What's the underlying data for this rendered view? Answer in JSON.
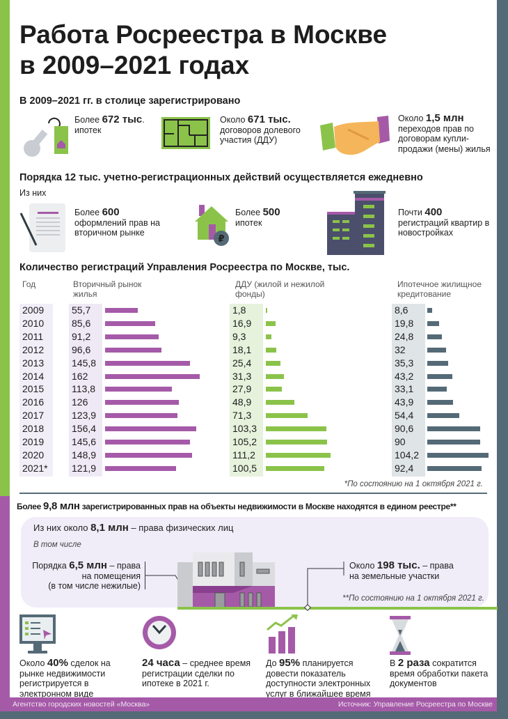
{
  "title_line1": "Работа Росреестра в Москве",
  "title_line2": "в 2009–2021 годах",
  "section1": {
    "heading": "В 2009–2021 гг. в столице зарегистрировано",
    "items": [
      {
        "icon": "key-icon",
        "prefix": "Более",
        "value": "672 тыс",
        "suffix": ".",
        "text": "ипотек"
      },
      {
        "icon": "floor-plan-icon",
        "prefix": "Около",
        "value": "671 тыс.",
        "suffix": "",
        "text": "договоров долевого участия (ДДУ)"
      },
      {
        "icon": "handshake-icon",
        "prefix": "Около",
        "value": "1,5 млн",
        "suffix": "",
        "text": "переходов прав по договорам купли-продажи (мены) жилья"
      }
    ]
  },
  "section2": {
    "heading": "Порядка 12 тыс. учетно-регистрационных действий осуществляется ежедневно",
    "sub": "Из них",
    "items": [
      {
        "icon": "document-icon",
        "prefix": "Более",
        "value": "600",
        "text": "оформлений прав на вторичном рынке"
      },
      {
        "icon": "house-ruble-icon",
        "prefix": "Более",
        "value": "500",
        "text": "ипотек"
      },
      {
        "icon": "apartment-building-icon",
        "prefix": "Почти",
        "value": "400",
        "text": "регистраций квартир в новостройках"
      }
    ]
  },
  "chart_data": {
    "type": "bar",
    "orientation": "horizontal",
    "title": "Количество регистраций Управления Росреестра по Москве, тыс.",
    "year_header": "Год",
    "categories": [
      "2009",
      "2010",
      "2011",
      "2012",
      "2013",
      "2014",
      "2015",
      "2016",
      "2017",
      "2018",
      "2019",
      "2020",
      "2021*"
    ],
    "series": [
      {
        "name": "Вторичный рынок жилья",
        "color": "#a55aa8",
        "labels": [
          "55,7",
          "85,6",
          "91,2",
          "96,6",
          "145,8",
          "162",
          "113,8",
          "126",
          "123,9",
          "156,4",
          "145,6",
          "148,9",
          "121,9"
        ],
        "values": [
          55.7,
          85.6,
          91.2,
          96.6,
          145.8,
          162,
          113.8,
          126,
          123.9,
          156.4,
          145.6,
          148.9,
          121.9
        ]
      },
      {
        "name": "ДДУ (жилой и нежилой фонды)",
        "color": "#8bc34a",
        "labels": [
          "1,8",
          "16,9",
          "9,3",
          "18,1",
          "25,4",
          "31,3",
          "27,9",
          "48,9",
          "71,3",
          "103,3",
          "105,2",
          "111,2",
          "100,5"
        ],
        "values": [
          1.8,
          16.9,
          9.3,
          18.1,
          25.4,
          31.3,
          27.9,
          48.9,
          71.3,
          103.3,
          105.2,
          111.2,
          100.5
        ]
      },
      {
        "name": "Ипотечное жилищное кредитование",
        "color": "#546a76",
        "labels": [
          "8,6",
          "19,8",
          "24,8",
          "32",
          "35,3",
          "43,2",
          "33,1",
          "43,9",
          "54,4",
          "90,6",
          "90",
          "104,2",
          "92,4"
        ],
        "values": [
          8.6,
          19.8,
          24.8,
          32,
          35.3,
          43.2,
          33.1,
          43.9,
          54.4,
          90.6,
          90,
          104.2,
          92.4
        ]
      }
    ],
    "footnote": "*По состоянию на 1 октября 2021 г."
  },
  "section3": {
    "heading_prefix": "Более",
    "heading_value": "9,8 млн",
    "heading_rest": "зарегистрированных прав на объекты недвижимости в Москве находятся в едином реестре**",
    "phys_prefix": "Из них около",
    "phys_value": "8,1 млн",
    "phys_rest": "– права физических лиц",
    "including": "В том числе",
    "premises_prefix": "Порядка",
    "premises_value": "6,5 млн",
    "premises_rest": "– права",
    "premises_line2": "на помещения",
    "premises_line3": "(в том числе нежилые)",
    "land_prefix": "Около",
    "land_value": "198 тыс.",
    "land_rest": "– права",
    "land_line2": "на земельные участки",
    "footnote": "**По состоянию на 1 октября 2021 г."
  },
  "section4": [
    {
      "icon": "monitor-icon",
      "prefix": "Около",
      "value": "40%",
      "rest": "сделок на рынке недвижимости регистрируется в электронном виде"
    },
    {
      "icon": "clock-icon",
      "prefix": "",
      "value": "24 часа",
      "rest": "– среднее время регистрации сделки по ипотеке в 2021 г."
    },
    {
      "icon": "growth-chart-icon",
      "prefix": "До",
      "value": "95%",
      "rest": "планируется довести показатель доступности электронных услуг в ближайшее время"
    },
    {
      "icon": "hourglass-icon",
      "prefix": "В",
      "value": "2 раза",
      "rest": "сократится время обработки пакета документов"
    }
  ],
  "footer": {
    "left": "Агентство городских новостей «Москва»",
    "right": "Источник: Управление Росреестра по Москве"
  },
  "colors": {
    "green": "#8bc34a",
    "purple": "#a55aa8",
    "slate": "#546a76"
  }
}
